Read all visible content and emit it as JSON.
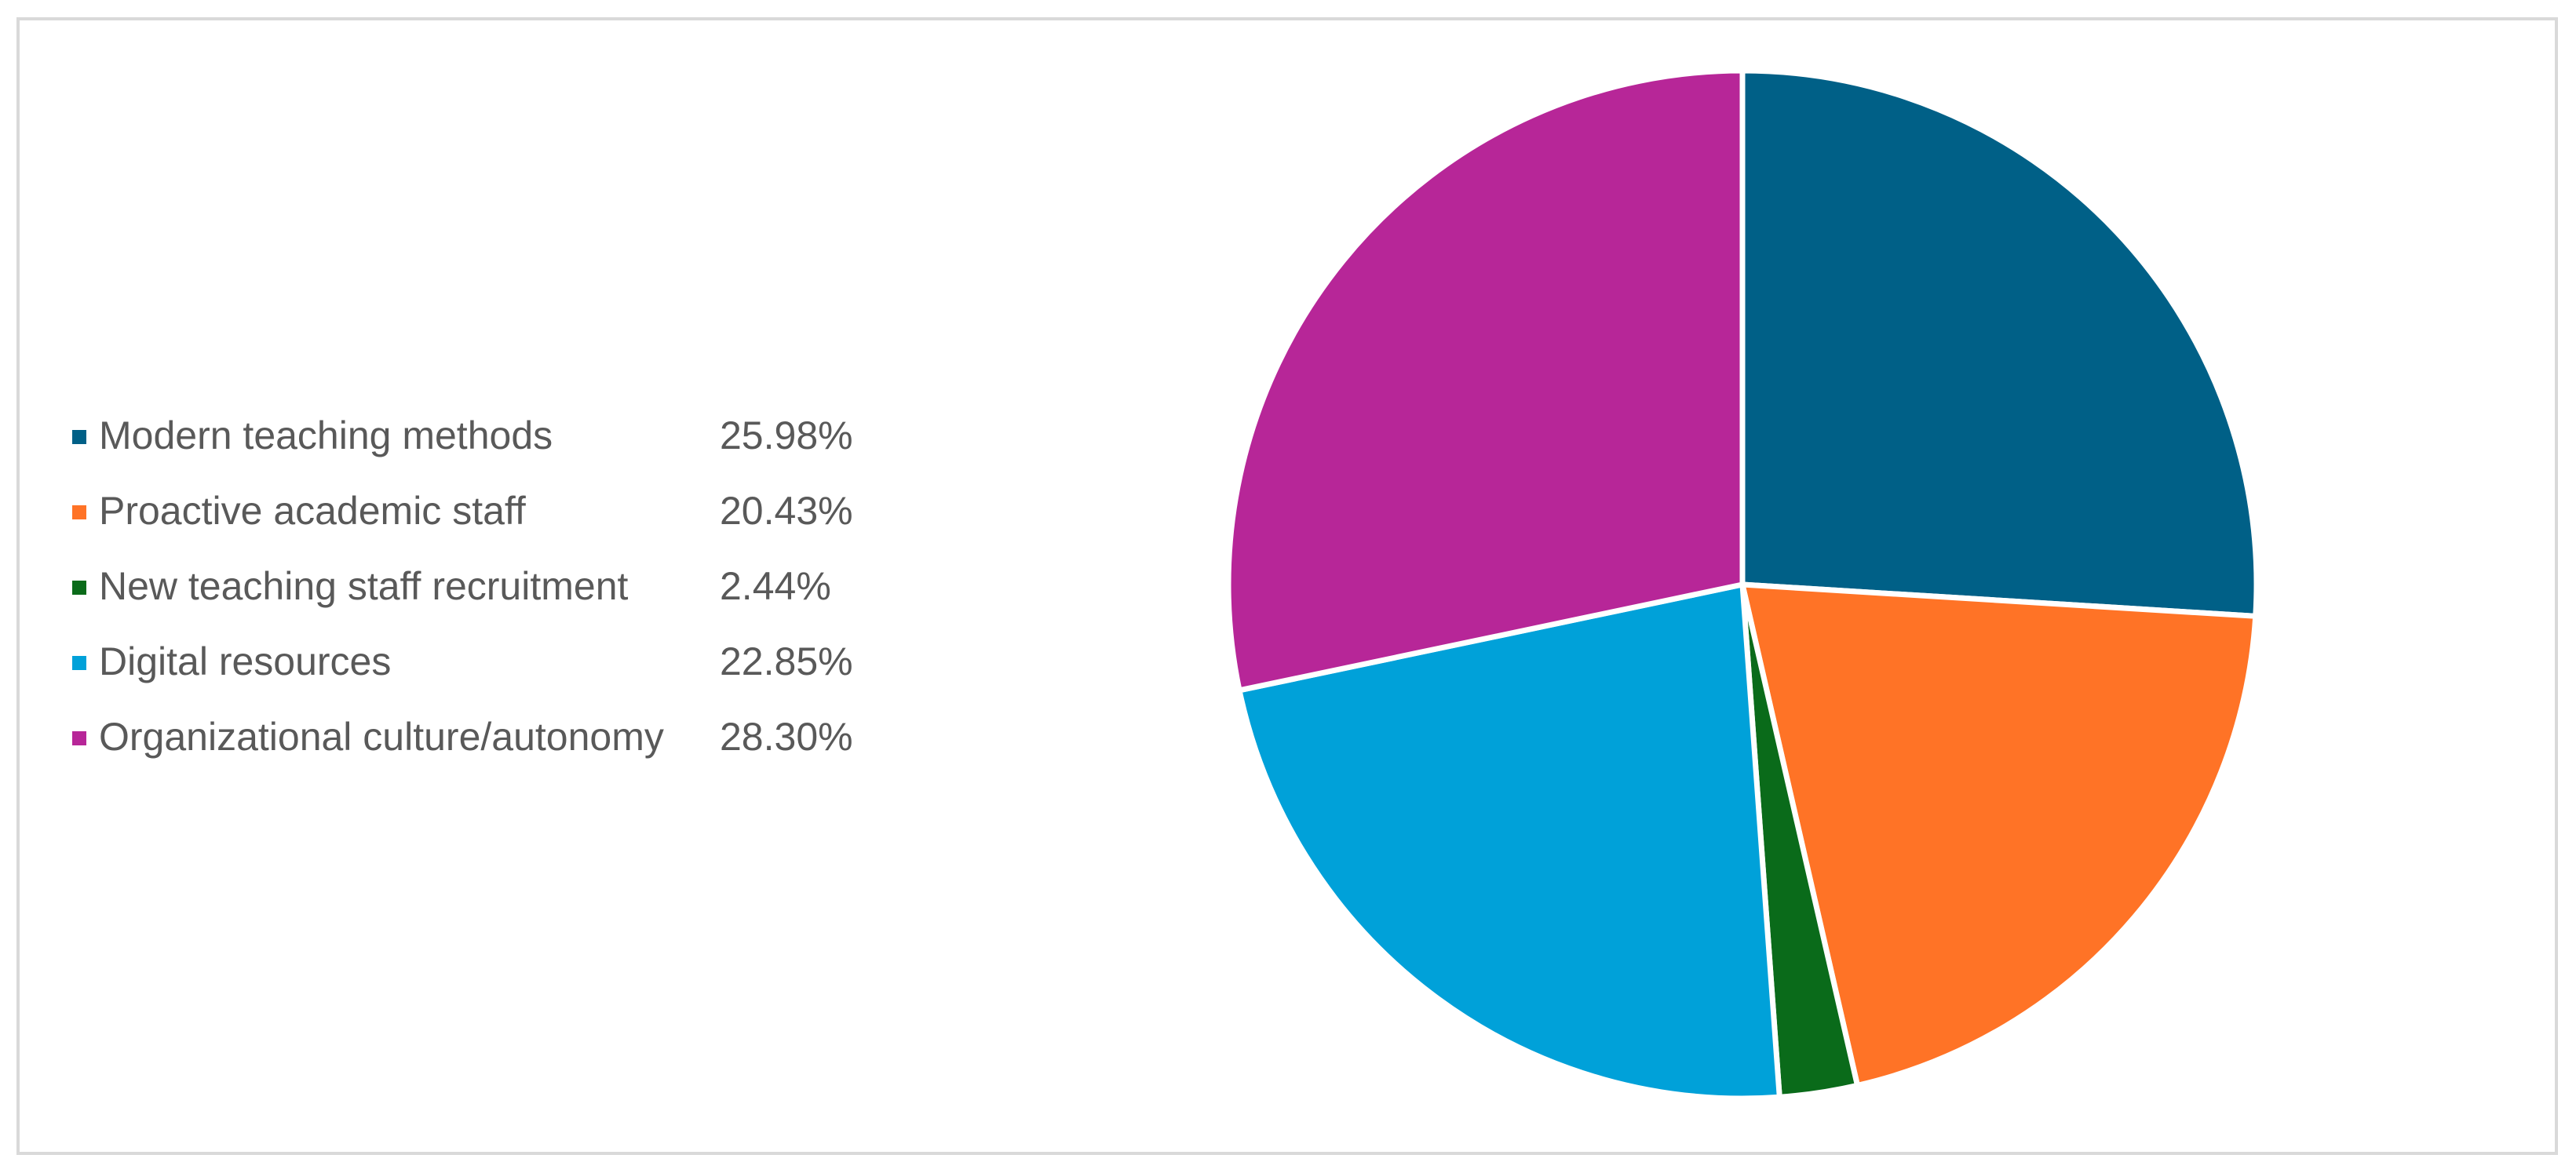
{
  "chart_data": {
    "type": "pie",
    "title": "",
    "legend_position": "left",
    "slices": [
      {
        "label": "Modern teaching methods",
        "value": 25.98,
        "display": "25.98%",
        "color": "#006087"
      },
      {
        "label": "Proactive academic staff",
        "value": 20.43,
        "display": "20.43%",
        "color": "#ff7326"
      },
      {
        "label": "New teaching staff recruitment",
        "value": 2.44,
        "display": "2.44%",
        "color": "#0a6b1a"
      },
      {
        "label": "Digital resources",
        "value": 22.85,
        "display": "22.85%",
        "color": "#00a1d9"
      },
      {
        "label": "Organizational culture/autonomy",
        "value": 28.3,
        "display": "28.30%",
        "color": "#b72698"
      }
    ]
  }
}
